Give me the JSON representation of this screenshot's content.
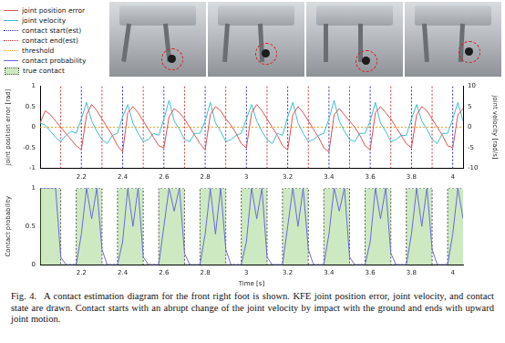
{
  "chart_data": [
    {
      "type": "line",
      "x": [
        2,
        2.025,
        2.05,
        2.075,
        2.1,
        2.125,
        2.15,
        2.175,
        2.2,
        2.225,
        2.25,
        2.275,
        2.3,
        2.325,
        2.35,
        2.375,
        2.4,
        2.425,
        2.45,
        2.475,
        2.5,
        2.525,
        2.55,
        2.575,
        2.6,
        2.625,
        2.65,
        2.675,
        2.7,
        2.725,
        2.75,
        2.775,
        2.8,
        2.825,
        2.85,
        2.875,
        2.9,
        2.925,
        2.95,
        2.975,
        3,
        3.025,
        3.05,
        3.075,
        3.1,
        3.125,
        3.15,
        3.175,
        3.2,
        3.225,
        3.25,
        3.275,
        3.3,
        3.325,
        3.35,
        3.375,
        3.4,
        3.425,
        3.45,
        3.475,
        3.5,
        3.525,
        3.55,
        3.575,
        3.6,
        3.625,
        3.65,
        3.675,
        3.7,
        3.725,
        3.75,
        3.775,
        3.8,
        3.825,
        3.85,
        3.875,
        3.9,
        3.925,
        3.95,
        3.975,
        4,
        4.025,
        4.05
      ],
      "xlim": [
        2,
        4.05
      ],
      "xticks": [
        2.2,
        2.4,
        2.6,
        2.8,
        3,
        3.2,
        3.4,
        3.6,
        3.8,
        4
      ],
      "ylim": [
        -1,
        1
      ],
      "yticks": [
        -1,
        -0.5,
        0,
        0.5,
        1
      ],
      "y2lim": [
        -10,
        10
      ],
      "y2ticks": [
        -10,
        -5,
        0,
        5,
        10
      ],
      "y_label": "joint position error [rad]",
      "y2_label": "joint velocity [rad/s]",
      "grid": false,
      "series": [
        {
          "name": "joint position error",
          "color": "#e05050",
          "line_style": "solid",
          "values": [
            0.1,
            0.4,
            0.3,
            0.15,
            0,
            -0.15,
            -0.3,
            -0.45,
            -0.55,
            0.3,
            0.55,
            0.4,
            0.2,
            0,
            -0.2,
            -0.45,
            -0.6,
            0.35,
            0.5,
            0.35,
            0.15,
            -0.05,
            -0.25,
            -0.45,
            -0.5,
            0.25,
            0.45,
            0.35,
            0.2,
            0,
            -0.2,
            -0.4,
            -0.55,
            0.3,
            0.5,
            0.4,
            0.2,
            0.05,
            -0.15,
            -0.4,
            -0.5,
            0.35,
            0.55,
            0.4,
            0.2,
            0,
            -0.2,
            -0.45,
            -0.55,
            0.3,
            0.5,
            0.35,
            0.15,
            -0.05,
            -0.25,
            -0.5,
            -0.6,
            0.3,
            0.45,
            0.3,
            0.15,
            0,
            -0.2,
            -0.45,
            -0.55,
            0.35,
            0.5,
            0.35,
            0.2,
            0,
            -0.2,
            -0.4,
            -0.5,
            0.3,
            0.5,
            0.4,
            0.2,
            0,
            -0.2,
            -0.45,
            -0.5,
            0.3,
            0.45
          ]
        },
        {
          "name": "joint velocity",
          "color": "#3cbfd0",
          "line_style": "solid",
          "axis": "y2",
          "values": [
            1,
            0.5,
            -1,
            -2.5,
            -3.5,
            -2,
            -1,
            -1.5,
            2,
            6,
            1.5,
            -1,
            -3,
            -4,
            -2,
            -1.5,
            2.5,
            5.5,
            1,
            -1.5,
            -3.5,
            -3,
            -1.5,
            -2,
            2,
            6.5,
            1.5,
            -0.5,
            -3,
            -3.5,
            -1.5,
            -1.5,
            1.5,
            6,
            1,
            -1,
            -3.5,
            -3,
            -2,
            -1.5,
            2,
            5.5,
            1.5,
            -1,
            -3,
            -4,
            -1.5,
            -2,
            2.5,
            6,
            1,
            -1.5,
            -3.5,
            -3,
            -2,
            -1.5,
            2,
            6.5,
            1.5,
            -1,
            -3,
            -3.5,
            -1.5,
            -1.5,
            1.5,
            6,
            1,
            -1,
            -3.5,
            -3,
            -2,
            -2,
            2,
            5.5,
            1.5,
            -0.5,
            -3,
            -4,
            -1.5,
            -1.5,
            2,
            6,
            1.5
          ]
        },
        {
          "name": "contact start(est)",
          "type": "vline",
          "color": "#2a2ab8",
          "line_style": "dotted",
          "x": [
            2.2,
            2.4,
            2.6,
            2.8,
            3,
            3.2,
            3.4,
            3.6,
            3.8,
            4
          ]
        },
        {
          "name": "contact end(est)",
          "type": "vline",
          "color": "#d03030",
          "line_style": "dotted",
          "x": [
            2.1,
            2.3,
            2.5,
            2.7,
            2.9,
            3.1,
            3.3,
            3.5,
            3.7,
            3.9
          ]
        },
        {
          "name": "threshold",
          "type": "hline",
          "color": "#f0a020",
          "line_style": "dotted",
          "axis": "y2",
          "value": 0
        }
      ]
    },
    {
      "type": "line",
      "x": [
        2,
        2.025,
        2.05,
        2.075,
        2.1,
        2.125,
        2.15,
        2.175,
        2.2,
        2.225,
        2.25,
        2.275,
        2.3,
        2.325,
        2.35,
        2.375,
        2.4,
        2.425,
        2.45,
        2.475,
        2.5,
        2.525,
        2.55,
        2.575,
        2.6,
        2.625,
        2.65,
        2.675,
        2.7,
        2.725,
        2.75,
        2.775,
        2.8,
        2.825,
        2.85,
        2.875,
        2.9,
        2.925,
        2.95,
        2.975,
        3,
        3.025,
        3.05,
        3.075,
        3.1,
        3.125,
        3.15,
        3.175,
        3.2,
        3.225,
        3.25,
        3.275,
        3.3,
        3.325,
        3.35,
        3.375,
        3.4,
        3.425,
        3.45,
        3.475,
        3.5,
        3.525,
        3.55,
        3.575,
        3.6,
        3.625,
        3.65,
        3.675,
        3.7,
        3.725,
        3.75,
        3.775,
        3.8,
        3.825,
        3.85,
        3.875,
        3.9,
        3.925,
        3.95,
        3.975,
        4,
        4.025,
        4.05
      ],
      "xlim": [
        2,
        4.05
      ],
      "xticks": [
        2.2,
        2.4,
        2.6,
        2.8,
        3,
        3.2,
        3.4,
        3.6,
        3.8,
        4
      ],
      "ylim": [
        0,
        1
      ],
      "yticks": [
        0,
        0.5,
        1
      ],
      "x_label": "Time [s]",
      "y_label": "Contact probability",
      "grid": false,
      "series": [
        {
          "name": "contact probability",
          "color": "#6a6ad8",
          "line_style": "solid",
          "values": [
            1,
            1,
            1,
            1,
            0.1,
            0,
            0,
            0,
            0.4,
            1,
            0.6,
            1,
            0.2,
            0,
            0,
            0,
            0.3,
            1,
            0.5,
            1,
            0.1,
            0,
            0,
            0,
            0.5,
            1,
            0.7,
            1,
            0.15,
            0,
            0,
            0,
            0.4,
            1,
            0.4,
            1,
            0.2,
            0,
            0,
            0,
            0.3,
            1,
            0.6,
            1,
            0.1,
            0,
            0,
            0,
            0.5,
            1,
            0.5,
            1,
            0.2,
            0,
            0,
            0,
            0.4,
            1,
            0.7,
            1,
            0.1,
            0,
            0,
            0,
            0.3,
            1,
            0.6,
            1,
            0.15,
            0,
            0,
            0,
            0.4,
            1,
            0.5,
            1,
            0.2,
            0,
            0,
            0,
            0.4,
            1,
            0.6
          ]
        },
        {
          "name": "true contact",
          "type": "step_area",
          "color": "#6fbf4f",
          "line_style": "dotted",
          "values": [
            1,
            1,
            1,
            1,
            1,
            0,
            0,
            0,
            1,
            1,
            1,
            1,
            1,
            0,
            0,
            0,
            1,
            1,
            1,
            1,
            1,
            0,
            0,
            0,
            1,
            1,
            1,
            1,
            1,
            0,
            0,
            0,
            1,
            1,
            1,
            1,
            1,
            0,
            0,
            0,
            1,
            1,
            1,
            1,
            1,
            0,
            0,
            0,
            1,
            1,
            1,
            1,
            1,
            0,
            0,
            0,
            1,
            1,
            1,
            1,
            1,
            0,
            0,
            0,
            1,
            1,
            1,
            1,
            1,
            0,
            0,
            0,
            1,
            1,
            1,
            1,
            1,
            0,
            0,
            0,
            1,
            1,
            1
          ]
        }
      ]
    }
  ],
  "caption": {
    "label": "Fig. 4.",
    "text": "A contact estimation diagram for the front right foot is shown. KFE joint position error, joint velocity, and contact state are drawn. Contact starts with an abrupt change of the joint velocity by impact with the ground and ends with upward joint motion."
  }
}
